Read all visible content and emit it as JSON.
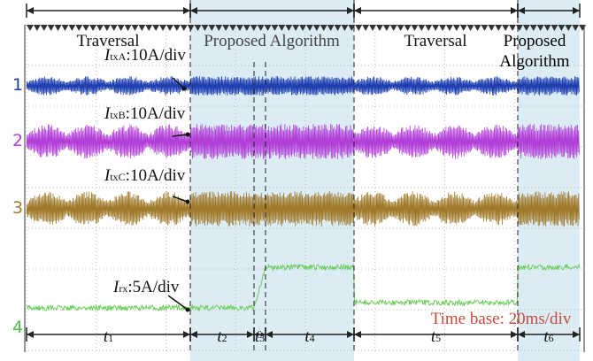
{
  "phases": [
    "Traversal",
    "Proposed Algorithm",
    "Traversal",
    [
      "Proposed",
      "Algorithm"
    ]
  ],
  "channels": [
    {
      "number": "1",
      "symbol": "I",
      "sub": "txA",
      "scale": ":10A/div"
    },
    {
      "number": "2",
      "symbol": "I",
      "sub": "txB",
      "scale": ":10A/div"
    },
    {
      "number": "3",
      "symbol": "I",
      "sub": "txC",
      "scale": ":10A/div"
    },
    {
      "number": "4",
      "symbol": "I",
      "sub": "rx",
      "scale": ":5A/div"
    }
  ],
  "intervals": [
    {
      "symbol": "t",
      "sub": "1"
    },
    {
      "symbol": "t",
      "sub": "2"
    },
    {
      "symbol": "t",
      "sub": "3"
    },
    {
      "symbol": "t",
      "sub": "4"
    },
    {
      "symbol": "t",
      "sub": "5"
    },
    {
      "symbol": "t",
      "sub": "6"
    }
  ],
  "time_base": "Time base: 20ms/div"
}
